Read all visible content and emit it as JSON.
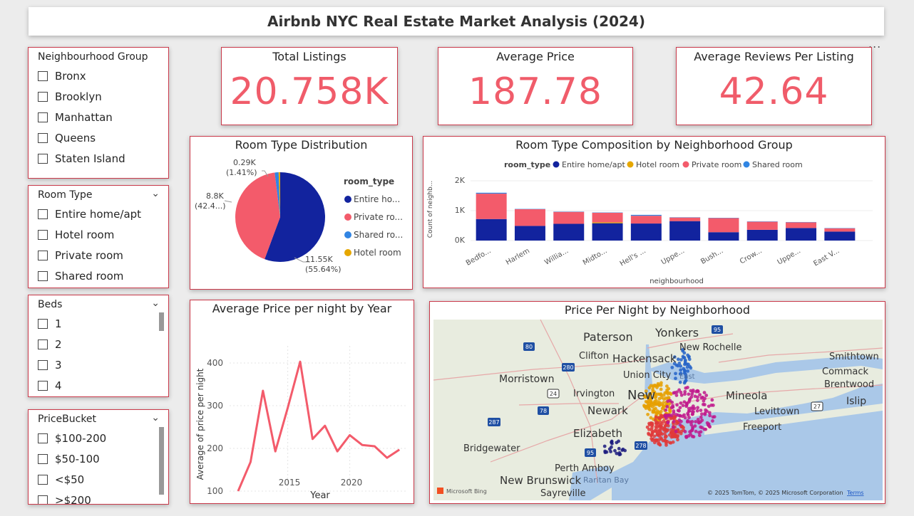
{
  "header": {
    "title": "Airbnb NYC Real Estate Market Analysis (2024)",
    "more_options": "..."
  },
  "slicers": {
    "neighbourhood_group": {
      "label": "Neighbourhood Group",
      "options": [
        "Bronx",
        "Brooklyn",
        "Manhattan",
        "Queens",
        "Staten Island"
      ]
    },
    "room_type": {
      "label": "Room Type",
      "options": [
        "Entire home/apt",
        "Hotel room",
        "Private room",
        "Shared room"
      ]
    },
    "beds": {
      "label": "Beds",
      "options": [
        "1",
        "2",
        "3",
        "4"
      ]
    },
    "price_bucket": {
      "label": "PriceBucket",
      "options": [
        "$100-200",
        "$50-100",
        "<$50",
        ">$200"
      ]
    }
  },
  "kpis": {
    "total_listings": {
      "label": "Total Listings",
      "value": "20.758K"
    },
    "average_price": {
      "label": "Average Price",
      "value": "187.78"
    },
    "avg_reviews": {
      "label": "Average Reviews Per Listing",
      "value": "42.64"
    }
  },
  "colors": {
    "entire": "#12239e",
    "private": "#f35b6b",
    "shared": "#3185e3",
    "hotel": "#e6a700",
    "kpi": "#f05c6a",
    "border": "#c9394a"
  },
  "pie": {
    "title": "Room Type Distribution",
    "legend_title": "room_type",
    "legend": [
      "Entire ho...",
      "Private ro...",
      "Shared ro...",
      "Hotel room"
    ],
    "labels": {
      "entire": [
        "11.55K",
        "(55.64%)"
      ],
      "private": [
        "8.8K",
        "(42.4...)"
      ],
      "shared": [
        "0.29K",
        "(1.41%)"
      ]
    }
  },
  "bar": {
    "title": "Room Type Composition by Neighborhood Group",
    "legend_title": "room_type",
    "legend": [
      "Entire home/apt",
      "Hotel room",
      "Private room",
      "Shared room"
    ],
    "y_title": "Count of neighb...",
    "x_title": "neighbourhood",
    "y_ticks": [
      "2K",
      "1K",
      "0K"
    ]
  },
  "line": {
    "title": "Average Price per night by Year",
    "y_title": "Average of price per night",
    "x_title": "Year",
    "y_ticks": [
      "400",
      "300",
      "200",
      "100"
    ],
    "x_ticks": [
      "2015",
      "2020"
    ]
  },
  "map": {
    "title": "Price Per Night by Neighborhood",
    "places": [
      "Paterson",
      "Yonkers",
      "New Rochelle",
      "Clifton",
      "Hackensack",
      "Smithtown",
      "Union City",
      "Commack",
      "Morristown",
      "Brentwood",
      "Irvington",
      "New",
      "Mineola",
      "Islip",
      "Newark",
      "Levittown",
      "Elizabeth",
      "Freeport",
      "Bridgewater",
      "Perth Amboy",
      "New Brunswick",
      "Raritan Bay",
      "Sayreville",
      "East"
    ],
    "shields": [
      "95",
      "80",
      "280",
      "24",
      "78",
      "287",
      "27",
      "95",
      "278"
    ],
    "attribution": "© 2025 TomTom, © 2025 Microsoft Corporation",
    "terms": "Terms",
    "bing": "Microsoft Bing"
  },
  "chart_data": [
    {
      "type": "pie",
      "title": "Room Type Distribution",
      "categories": [
        "Entire home/apt",
        "Private room",
        "Shared room",
        "Hotel room"
      ],
      "values": [
        11550,
        8800,
        290,
        118
      ],
      "percent": [
        55.64,
        42.4,
        1.41,
        0.55
      ]
    },
    {
      "type": "bar",
      "title": "Room Type Composition by Neighborhood Group",
      "xlabel": "neighbourhood",
      "ylabel": "Count of neighb...",
      "ylim": [
        0,
        2000
      ],
      "categories": [
        "Bedfo...",
        "Harlem",
        "Willia...",
        "Midto...",
        "Hell's ...",
        "Uppe...",
        "Bush...",
        "Crow...",
        "Uppe...",
        "East V..."
      ],
      "series": [
        {
          "name": "Entire home/apt",
          "values": [
            720,
            490,
            560,
            580,
            570,
            650,
            280,
            360,
            420,
            300
          ]
        },
        {
          "name": "Hotel room",
          "values": [
            0,
            0,
            0,
            30,
            0,
            0,
            0,
            0,
            0,
            0
          ]
        },
        {
          "name": "Private room",
          "values": [
            850,
            560,
            400,
            320,
            260,
            120,
            470,
            270,
            190,
            110
          ]
        },
        {
          "name": "Shared room",
          "values": [
            30,
            10,
            10,
            10,
            30,
            10,
            10,
            10,
            10,
            10
          ]
        }
      ]
    },
    {
      "type": "line",
      "title": "Average Price per night by Year",
      "xlabel": "Year",
      "ylabel": "Average of price per night",
      "x": [
        2011,
        2012,
        2013,
        2014,
        2015,
        2016,
        2017,
        2018,
        2019,
        2020,
        2021,
        2022,
        2023,
        2024
      ],
      "values": [
        100,
        168,
        335,
        193,
        295,
        403,
        222,
        253,
        193,
        231,
        208,
        205,
        178,
        197
      ],
      "ylim": [
        100,
        420
      ]
    }
  ]
}
